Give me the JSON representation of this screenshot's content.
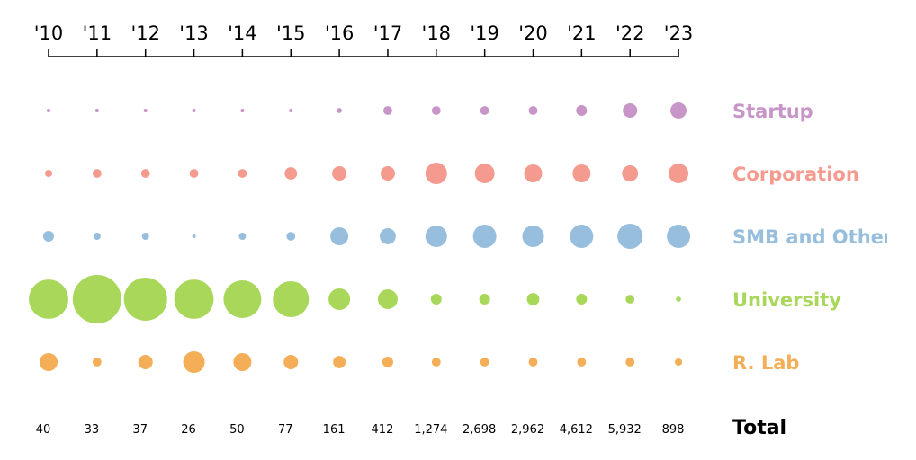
{
  "chart_data": {
    "type": "scatter",
    "subtype": "bubble-matrix",
    "title": "",
    "x": [
      "'10",
      "'11",
      "'12",
      "'13",
      "'14",
      "'15",
      "'16",
      "'17",
      "'18",
      "'19",
      "'20",
      "'21",
      "'22",
      "'23"
    ],
    "series": [
      {
        "name": "Startup",
        "color": "#c795c8",
        "values": [
          0.5,
          0.5,
          0.5,
          0.5,
          0.5,
          0.5,
          1,
          3,
          3,
          3,
          3,
          4.5,
          8,
          10
        ]
      },
      {
        "name": "Corporation",
        "color": "#f59a8e",
        "values": [
          2,
          3,
          3,
          3,
          3,
          6,
          8,
          8,
          18,
          15,
          12.5,
          12.5,
          10,
          15
        ]
      },
      {
        "name": "SMB and Other",
        "color": "#97bfdd",
        "values": [
          4.5,
          2,
          2,
          0.5,
          2,
          3,
          12.5,
          10,
          18,
          21,
          18,
          21,
          24.5,
          21
        ]
      },
      {
        "name": "University",
        "color": "#a9d75a",
        "values": [
          60,
          91,
          72,
          60,
          55,
          50,
          18,
          15,
          4.5,
          4.5,
          6,
          4.5,
          3,
          1
        ]
      },
      {
        "name": "R. Lab",
        "color": "#f3ae57",
        "values": [
          12.5,
          3,
          8,
          18,
          12.5,
          8,
          6,
          4.5,
          3,
          3,
          3,
          3,
          3,
          2
        ]
      }
    ],
    "totals_label": "Total",
    "totals": [
      "40",
      "33",
      "37",
      "26",
      "50",
      "77",
      "161",
      "412",
      "1,274",
      "2,698",
      "2,962",
      "4,612",
      "5,932",
      "898"
    ],
    "value_unit": "approximate share (%) encoded by bubble area"
  }
}
